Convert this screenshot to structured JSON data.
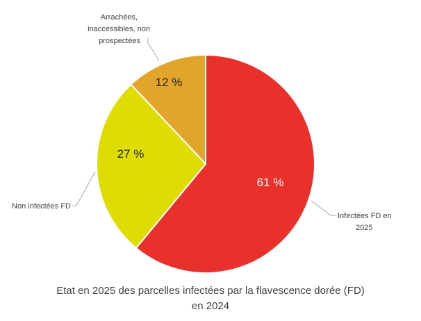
{
  "chart_data": {
    "type": "pie",
    "title": "Etat en 2025 des parcelles infectées par la flavescence dorée (FD) en 2024",
    "title_lines": [
      "Etat en 2025 des parcelles infectées par la flavescence dorée (FD)",
      "en 2024"
    ],
    "slices": [
      {
        "name": "Infectées FD en 2025",
        "label_lines": [
          "Infectées FD en",
          "2025"
        ],
        "value": 61,
        "value_label": "61 %",
        "color": "#e8312a",
        "text_color": "#ffffff"
      },
      {
        "name": "Non infectées FD",
        "label_lines": [
          "Non infectées FD"
        ],
        "value": 27,
        "value_label": "27 %",
        "color": "#dedc00",
        "text_color": "#222222"
      },
      {
        "name": "Arrachées, inaccessibles, non prospectées",
        "label_lines": [
          "Arrachées,",
          "inaccessibles, non",
          "prospectées"
        ],
        "value": 12,
        "value_label": "12 %",
        "color": "#e1a52c",
        "text_color": "#222222"
      }
    ]
  }
}
